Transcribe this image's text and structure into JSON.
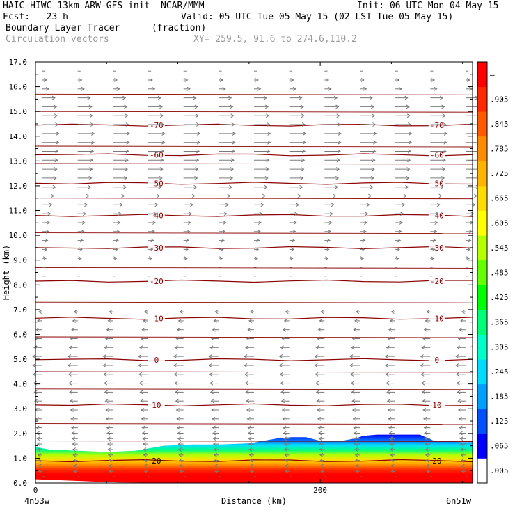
{
  "header": {
    "model": "HAIC-HIWC 13km ARW-GFS init  NCAR/MMM",
    "init": "Init: 06 UTC Mon 04 May 15",
    "fcst": "Fcst:   23 h",
    "valid": "Valid: 05 UTC Tue 05 May 15 (02 LST Tue 05 May 15)",
    "field": "Boundary Layer Tracer",
    "units": "(fraction)",
    "vectors": "Circulation vectors",
    "xy": "XY= 259.5, 91.6 to 274.6,110.2"
  },
  "chart_data": {
    "type": "heatmap",
    "title": "Boundary Layer Tracer",
    "xlabel": "Distance (km)",
    "ylabel": "Height (km)",
    "xlim": [
      0,
      307
    ],
    "ylim": [
      0,
      17
    ],
    "x_ticks": [
      0,
      200
    ],
    "y_ticks": [
      "0.0",
      "1.0",
      "2.0",
      "3.0",
      "4.0",
      "5.0",
      "6.0",
      "7.0",
      "8.0",
      "9.0",
      "10.0",
      "11.0",
      "12.0",
      "13.0",
      "14.0",
      "15.0",
      "16.0",
      "17.0"
    ],
    "x_endpoints": {
      "left": "4n53w",
      "right": "6n51w"
    },
    "boundary_layer_top_km": {
      "x_km": [
        0,
        10,
        30,
        50,
        70,
        90,
        110,
        130,
        150,
        160,
        170,
        180,
        190,
        200,
        215,
        225,
        230,
        240,
        250,
        260,
        270,
        280,
        300,
        307
      ],
      "top": [
        1.45,
        1.35,
        1.3,
        1.25,
        1.3,
        1.5,
        1.55,
        1.55,
        1.6,
        1.7,
        1.8,
        1.85,
        1.85,
        1.7,
        1.7,
        1.8,
        1.9,
        1.95,
        1.95,
        1.95,
        1.95,
        1.7,
        1.65,
        1.65
      ]
    },
    "temperature_contours": [
      {
        "label": "20",
        "height_km": 0.9
      },
      {
        "label": "10",
        "height_km": 3.15
      },
      {
        "label": "0",
        "height_km": 4.98
      },
      {
        "label": "-10",
        "height_km": 6.65
      },
      {
        "label": "-20",
        "height_km": 8.15
      },
      {
        "label": "-30",
        "height_km": 9.5
      },
      {
        "label": "-40",
        "height_km": 10.8
      },
      {
        "label": "-50",
        "height_km": 12.1
      },
      {
        "label": "-60",
        "height_km": 13.25
      },
      {
        "label": "-70",
        "height_km": 14.45
      }
    ],
    "vector_wind": {
      "heights_km": [
        0.3,
        5.0,
        7.0,
        9.0,
        11.0,
        12.0,
        14.0,
        15.5,
        16.0,
        17.0
      ],
      "u_rel": [
        -0.2,
        -0.6,
        -0.2,
        0.2,
        0.5,
        0.8,
        1.0,
        0.8,
        0.3,
        0.1
      ]
    },
    "colorbar": {
      "labels": [
        ".005",
        ".065",
        ".125",
        ".185",
        ".245",
        ".305",
        ".365",
        ".425",
        ".485",
        ".545",
        ".605",
        ".665",
        ".725",
        ".785",
        ".845",
        ".905",
        "–"
      ],
      "colors": [
        "#ffffff",
        "#0000ff",
        "#0050ff",
        "#00a0ff",
        "#00dcff",
        "#00ffc8",
        "#00ff78",
        "#00ff00",
        "#64ff00",
        "#b4ff00",
        "#ffff00",
        "#ffdc00",
        "#ffb400",
        "#ff8c00",
        "#ff5a00",
        "#ff2800",
        "#ff0000"
      ]
    }
  }
}
